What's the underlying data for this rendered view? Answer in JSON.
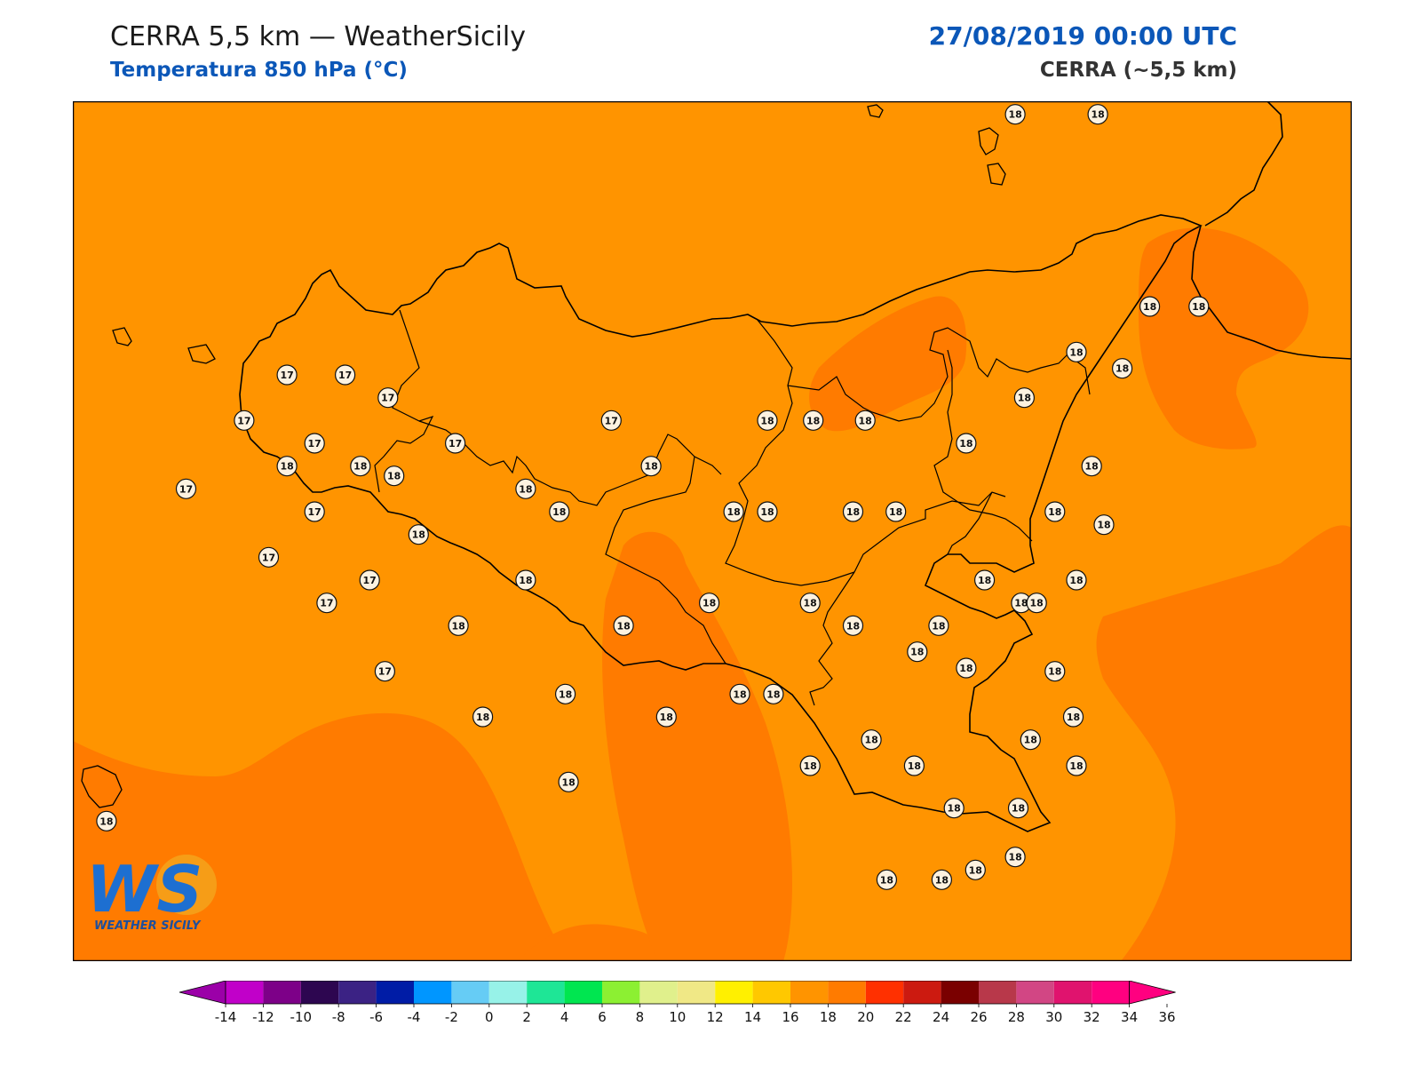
{
  "header": {
    "title": "CERRA 5,5 km — WeatherSicily",
    "subtitle": "Temperatura 850 hPa (°C)",
    "datetime": "27/08/2019 00:00 UTC",
    "model": "CERRA (~5,5 km)"
  },
  "logo": {
    "letters": "WS",
    "text": "WEATHER SICILY"
  },
  "colors": {
    "background_field": "#ff9400",
    "warm_field": "#ff7b00",
    "coastline": "#000000",
    "station_fill": "#fdf2e0"
  },
  "stations": [
    {
      "value": "18",
      "lon": 14.95,
      "lat": 38.98
    },
    {
      "value": "18",
      "lon": 15.22,
      "lat": 38.98
    },
    {
      "value": "17",
      "lon": 12.57,
      "lat": 38.18
    },
    {
      "value": "17",
      "lon": 12.76,
      "lat": 38.18
    },
    {
      "value": "17",
      "lon": 12.9,
      "lat": 38.11
    },
    {
      "value": "17",
      "lon": 12.43,
      "lat": 38.04
    },
    {
      "value": "17",
      "lon": 12.66,
      "lat": 37.97
    },
    {
      "value": "17",
      "lon": 13.12,
      "lat": 37.97
    },
    {
      "value": "17",
      "lon": 13.63,
      "lat": 38.04
    },
    {
      "value": "18",
      "lon": 12.57,
      "lat": 37.9
    },
    {
      "value": "18",
      "lon": 12.81,
      "lat": 37.9
    },
    {
      "value": "18",
      "lon": 12.92,
      "lat": 37.87
    },
    {
      "value": "17",
      "lon": 12.24,
      "lat": 37.83
    },
    {
      "value": "17",
      "lon": 12.66,
      "lat": 37.76
    },
    {
      "value": "18",
      "lon": 13.35,
      "lat": 37.83
    },
    {
      "value": "18",
      "lon": 13.46,
      "lat": 37.76
    },
    {
      "value": "18",
      "lon": 13.76,
      "lat": 37.9
    },
    {
      "value": "17",
      "lon": 12.51,
      "lat": 37.62
    },
    {
      "value": "18",
      "lon": 13.0,
      "lat": 37.69
    },
    {
      "value": "17",
      "lon": 12.84,
      "lat": 37.55
    },
    {
      "value": "17",
      "lon": 12.7,
      "lat": 37.48
    },
    {
      "value": "18",
      "lon": 13.13,
      "lat": 37.41
    },
    {
      "value": "18",
      "lon": 13.35,
      "lat": 37.55
    },
    {
      "value": "17",
      "lon": 12.89,
      "lat": 37.27
    },
    {
      "value": "18",
      "lon": 13.21,
      "lat": 37.13
    },
    {
      "value": "18",
      "lon": 13.48,
      "lat": 37.2
    },
    {
      "value": "18",
      "lon": 13.49,
      "lat": 36.93
    },
    {
      "value": "18",
      "lon": 13.67,
      "lat": 37.41
    },
    {
      "value": "18",
      "lon": 13.81,
      "lat": 37.13
    },
    {
      "value": "18",
      "lon": 13.95,
      "lat": 37.48
    },
    {
      "value": "18",
      "lon": 14.05,
      "lat": 37.2
    },
    {
      "value": "18",
      "lon": 14.03,
      "lat": 37.76
    },
    {
      "value": "18",
      "lon": 14.14,
      "lat": 38.04
    },
    {
      "value": "18",
      "lon": 14.29,
      "lat": 38.04
    },
    {
      "value": "18",
      "lon": 14.14,
      "lat": 37.76
    },
    {
      "value": "18",
      "lon": 14.42,
      "lat": 37.76
    },
    {
      "value": "18",
      "lon": 14.56,
      "lat": 37.76
    },
    {
      "value": "18",
      "lon": 14.28,
      "lat": 37.48
    },
    {
      "value": "18",
      "lon": 14.42,
      "lat": 37.41
    },
    {
      "value": "18",
      "lon": 14.16,
      "lat": 37.2
    },
    {
      "value": "18",
      "lon": 14.7,
      "lat": 37.41
    },
    {
      "value": "18",
      "lon": 14.48,
      "lat": 37.06
    },
    {
      "value": "18",
      "lon": 14.62,
      "lat": 36.98
    },
    {
      "value": "18",
      "lon": 14.28,
      "lat": 36.98
    },
    {
      "value": "18",
      "lon": 14.53,
      "lat": 36.63
    },
    {
      "value": "18",
      "lon": 14.71,
      "lat": 36.63
    },
    {
      "value": "18",
      "lon": 14.46,
      "lat": 38.04
    },
    {
      "value": "18",
      "lon": 14.79,
      "lat": 37.97
    },
    {
      "value": "18",
      "lon": 14.98,
      "lat": 38.11
    },
    {
      "value": "18",
      "lon": 15.15,
      "lat": 38.25
    },
    {
      "value": "18",
      "lon": 15.39,
      "lat": 38.39
    },
    {
      "value": "18",
      "lon": 15.55,
      "lat": 38.39
    },
    {
      "value": "18",
      "lon": 15.3,
      "lat": 38.2
    },
    {
      "value": "18",
      "lon": 15.2,
      "lat": 37.9
    },
    {
      "value": "18",
      "lon": 15.08,
      "lat": 37.76
    },
    {
      "value": "18",
      "lon": 14.85,
      "lat": 37.55
    },
    {
      "value": "18",
      "lon": 14.97,
      "lat": 37.48
    },
    {
      "value": "18",
      "lon": 15.24,
      "lat": 37.72
    },
    {
      "value": "18",
      "lon": 15.15,
      "lat": 37.55
    },
    {
      "value": "18",
      "lon": 15.02,
      "lat": 37.48
    },
    {
      "value": "18",
      "lon": 14.79,
      "lat": 37.28
    },
    {
      "value": "18",
      "lon": 15.08,
      "lat": 37.27
    },
    {
      "value": "18",
      "lon": 15.14,
      "lat": 37.13
    },
    {
      "value": "18",
      "lon": 15.15,
      "lat": 36.98
    },
    {
      "value": "18",
      "lon": 15.0,
      "lat": 37.06
    },
    {
      "value": "18",
      "lon": 14.75,
      "lat": 36.85
    },
    {
      "value": "18",
      "lon": 14.96,
      "lat": 36.85
    },
    {
      "value": "18",
      "lon": 14.95,
      "lat": 36.7
    },
    {
      "value": "18",
      "lon": 14.82,
      "lat": 36.66
    },
    {
      "value": "18",
      "lon": 11.98,
      "lat": 36.81
    },
    {
      "value": "18",
      "lon": 14.63,
      "lat": 37.33
    }
  ],
  "colorbar": {
    "ticks": [
      "-14",
      "-12",
      "-10",
      "-8",
      "-6",
      "-4",
      "-2",
      "0",
      "2",
      "4",
      "6",
      "8",
      "10",
      "12",
      "14",
      "16",
      "18",
      "20",
      "22",
      "24",
      "26",
      "28",
      "30",
      "32",
      "34",
      "36"
    ],
    "under_color": "#9b00a8",
    "over_color": "#ff0080",
    "colors": [
      "#c100c9",
      "#7d0088",
      "#2d0650",
      "#3b2284",
      "#001ca6",
      "#0096ff",
      "#66ccf5",
      "#97f2e8",
      "#1ee696",
      "#00e650",
      "#8cf032",
      "#e0f08c",
      "#f0e886",
      "#fff000",
      "#ffc800",
      "#ff9400",
      "#ff7b00",
      "#ff3000",
      "#cc1a10",
      "#7a0000",
      "#b8384a",
      "#d24684",
      "#e0136e",
      "#ff0080"
    ]
  }
}
